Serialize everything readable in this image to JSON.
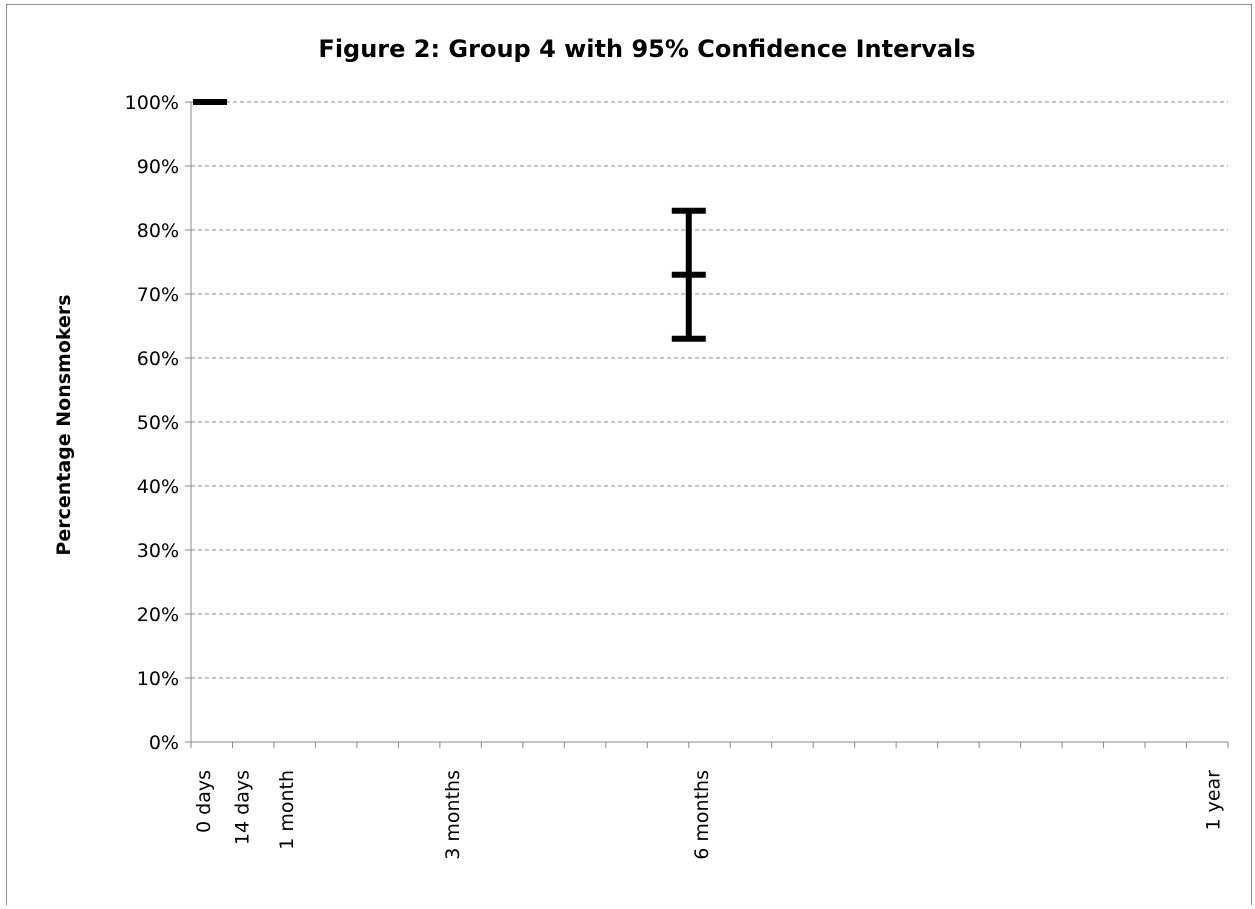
{
  "chart_data": {
    "type": "error-bar",
    "title": "Figure 2: Group 4 with 95% Confidence Intervals",
    "ylabel": "Percentage Nonsmokers",
    "xlabel": "",
    "ylim": [
      0,
      100
    ],
    "y_ticks": [
      "0%",
      "10%",
      "20%",
      "30%",
      "40%",
      "50%",
      "60%",
      "70%",
      "80%",
      "90%",
      "100%"
    ],
    "grid": true,
    "x_ticks": [
      {
        "label": "0 days",
        "day": 0
      },
      {
        "label": "14 days",
        "day": 14
      },
      {
        "label": "1 month",
        "day": 30
      },
      {
        "label": "3 months",
        "day": 90
      },
      {
        "label": "6 months",
        "day": 180
      },
      {
        "label": "1 year",
        "day": 365
      }
    ],
    "xlim_days": [
      0,
      375
    ],
    "series": [
      {
        "points": [
          {
            "x": "0 days",
            "day": 0,
            "value": 100
          },
          {
            "x": "6 months",
            "day": 180,
            "value": 73,
            "ci_low": 63,
            "ci_high": 83
          }
        ]
      }
    ],
    "colors": {
      "marks": "#000000",
      "grid": "#8a8a8a"
    }
  }
}
